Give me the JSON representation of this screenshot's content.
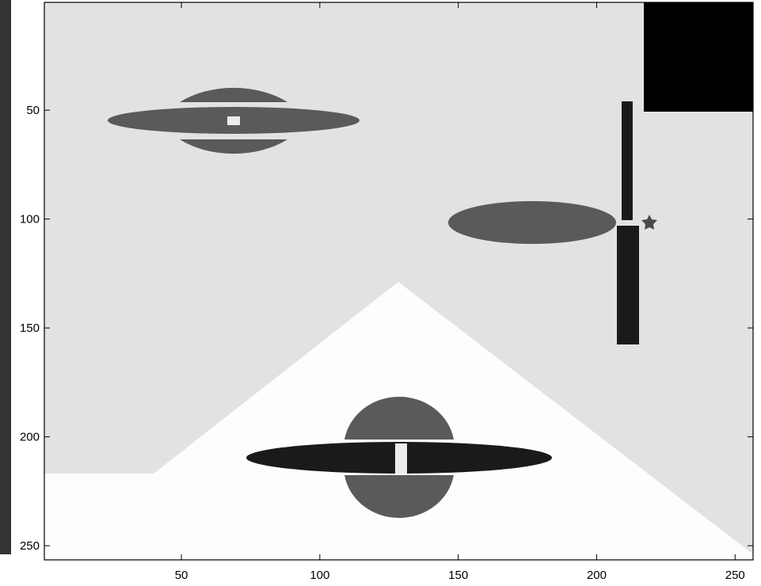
{
  "x_axis": {
    "ticks": [
      50,
      100,
      150,
      200,
      250
    ],
    "range": [
      1,
      256
    ]
  },
  "y_axis": {
    "ticks": [
      50,
      100,
      150,
      200,
      250
    ],
    "range": [
      1,
      256
    ],
    "reversed": true
  },
  "colors": {
    "background_gray": "#e2e2e2",
    "triangle_white": "#fdfdfd",
    "object_gray": "#5a5a5a",
    "object_dark": "#1a1a1a",
    "square_black": "#000000",
    "left_strip": "#3a3a3a"
  }
}
